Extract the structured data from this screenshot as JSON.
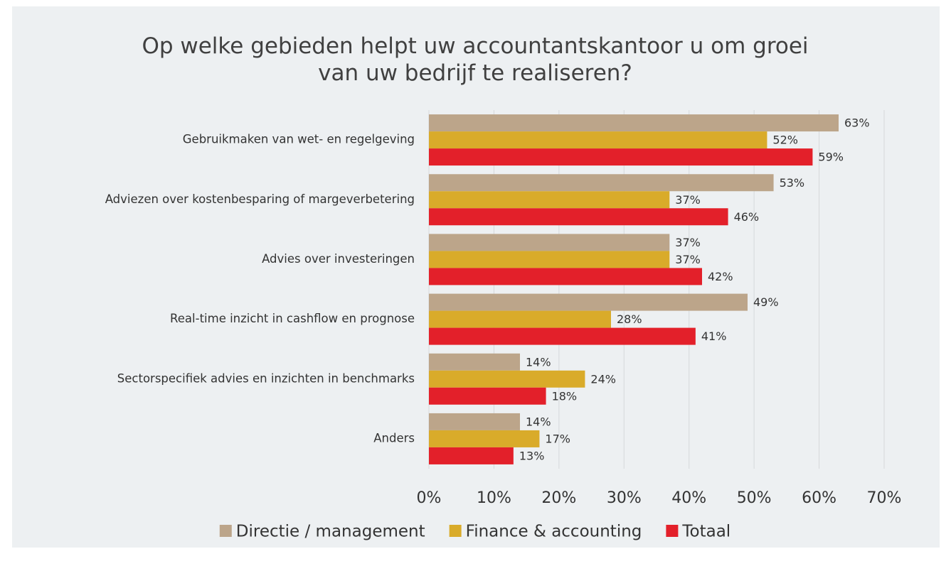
{
  "chart_data": {
    "type": "hbar",
    "title": "Op welke gebieden helpt uw accountantskantoor u om groei van uw bedrijf te realiseren?",
    "categories": [
      "Gebruikmaken van wet- en regelgeving",
      "Adviezen over kostenbesparing of margeverbetering",
      "Advies over investeringen",
      "Real-time inzicht in cashflow en prognose",
      "Sectorspecifiek advies en inzichten in benchmarks",
      "Anders"
    ],
    "series": [
      {
        "name": "Directie / management",
        "color": "#bca58a",
        "values": [
          63,
          53,
          37,
          49,
          14,
          14
        ],
        "value_labels": [
          "63%",
          "53%",
          "37%",
          "49%",
          "14%",
          "14%"
        ]
      },
      {
        "name": "Finance & accounting",
        "color": "#d9ab2a",
        "values": [
          52,
          37,
          37,
          28,
          24,
          17
        ],
        "value_labels": [
          "52%",
          "37%",
          "37%",
          "28%",
          "24%",
          "17%"
        ]
      },
      {
        "name": "Totaal",
        "color": "#e3202a",
        "values": [
          59,
          46,
          42,
          41,
          18,
          13
        ],
        "value_labels": [
          "59%",
          "46%",
          "42%",
          "41%",
          "18%",
          "13%"
        ]
      }
    ],
    "xlim": [
      0,
      70
    ],
    "xticks": [
      {
        "value": 0,
        "label": "0%"
      },
      {
        "value": 10,
        "label": "10%"
      },
      {
        "value": 20,
        "label": "20%"
      },
      {
        "value": 30,
        "label": "30%"
      },
      {
        "value": 40,
        "label": "40%"
      },
      {
        "value": 50,
        "label": "50%"
      },
      {
        "value": 60,
        "label": "60%"
      },
      {
        "value": 70,
        "label": "70%"
      }
    ],
    "grid": true,
    "legend": "bottom"
  }
}
